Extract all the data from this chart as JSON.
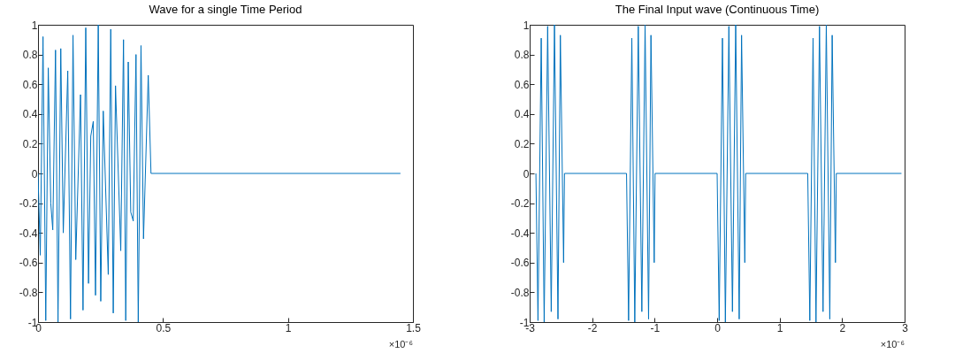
{
  "chart_data": [
    {
      "type": "line",
      "title": "Wave for a single Time Period",
      "series": [
        {
          "color": "#0072bd",
          "x": [
            0,
            0.009,
            0.02,
            0.031,
            0.041,
            0.051,
            0.059,
            0.07,
            0.08,
            0.091,
            0.101,
            0.119,
            0.13,
            0.14,
            0.151,
            0.17,
            0.18,
            0.191,
            0.202,
            0.211,
            0.221,
            0.23,
            0.241,
            0.251,
            0.261,
            0.281,
            0.291,
            0.301,
            0.31,
            0.331,
            0.342,
            0.351,
            0.361,
            0.371,
            0.381,
            0.392,
            0.401,
            0.412,
            0.422,
            0.441,
            0.452,
            1.45
          ],
          "values": [
            0,
            -0.55,
            0.92,
            -0.99,
            0.71,
            -0.2,
            -0.38,
            0.83,
            -1,
            0.84,
            -0.4,
            0.69,
            -0.98,
            0.93,
            -0.58,
            0.53,
            -0.92,
            0.98,
            -0.74,
            0.25,
            0.35,
            -0.82,
            1,
            -0.86,
            0.42,
            -0.68,
            0.97,
            -0.94,
            0.59,
            -0.52,
            0.9,
            -0.99,
            0.75,
            -0.26,
            -0.32,
            0.8,
            -1,
            0.86,
            -0.44,
            0.66,
            0,
            0
          ]
        }
      ],
      "xlim": [
        0,
        1.5
      ],
      "xticks": [
        0,
        0.5,
        1,
        1.5
      ],
      "ylim": [
        -1,
        1
      ],
      "yticks": [
        -1,
        -0.8,
        -0.6,
        -0.4,
        -0.2,
        0,
        0.2,
        0.4,
        0.6,
        0.8,
        1
      ],
      "grid": false,
      "marker": "none",
      "line_style": "solid",
      "annotations": [
        "×10⁻⁶"
      ]
    },
    {
      "type": "line",
      "title": "The Final Input wave (Continuous Time)",
      "series": [
        {
          "color": "#0072bd",
          "x": [
            -2.9,
            -2.867,
            -2.815,
            -2.768,
            -2.712,
            -2.655,
            -2.603,
            -2.547,
            -2.509,
            -2.457,
            -2.443,
            -1.45,
            -1.417,
            -1.365,
            -1.318,
            -1.262,
            -1.205,
            -1.153,
            -1.097,
            -1.059,
            -1.007,
            -0.993,
            0,
            0.033,
            0.085,
            0.132,
            0.188,
            0.245,
            0.297,
            0.353,
            0.391,
            0.443,
            0.457,
            1.45,
            1.483,
            1.535,
            1.582,
            1.638,
            1.695,
            1.747,
            1.803,
            1.841,
            1.893,
            1.907,
            2.95
          ],
          "values": [
            0,
            -0.99,
            0.91,
            -1,
            0.99,
            -0.93,
            1,
            -0.98,
            0.93,
            -0.6,
            0,
            0,
            -0.99,
            0.91,
            -1,
            0.99,
            -0.93,
            1,
            -0.98,
            0.93,
            -0.6,
            0,
            0,
            -0.99,
            0.91,
            -1,
            0.99,
            -0.93,
            1,
            -0.98,
            0.93,
            -0.6,
            0,
            0,
            -0.99,
            0.91,
            -1,
            0.99,
            -0.93,
            1,
            -0.98,
            0.93,
            -0.6,
            0,
            0
          ]
        }
      ],
      "xlim": [
        -3,
        3
      ],
      "xticks": [
        -3,
        -2,
        -1,
        0,
        1,
        2,
        3
      ],
      "ylim": [
        -1,
        1
      ],
      "yticks": [
        -1,
        -0.8,
        -0.6,
        -0.4,
        -0.2,
        0,
        0.2,
        0.4,
        0.6,
        0.8,
        1
      ],
      "grid": false,
      "marker": "none",
      "line_style": "solid",
      "annotations": [
        "×10⁻⁶"
      ]
    }
  ]
}
